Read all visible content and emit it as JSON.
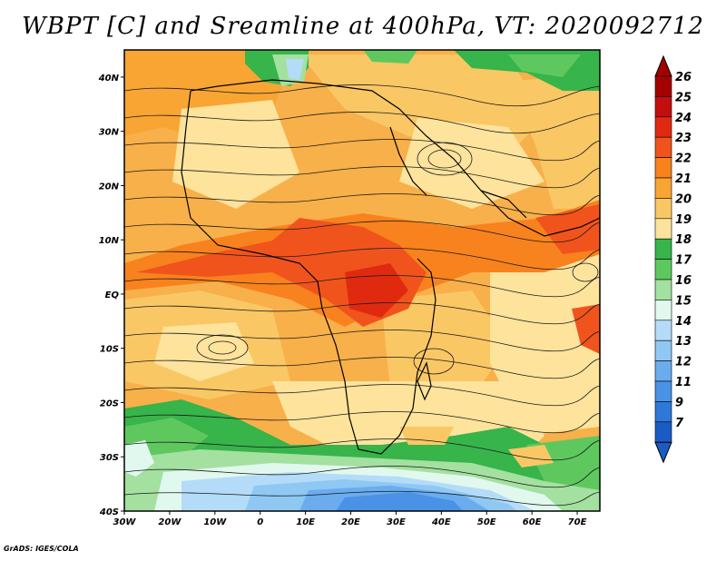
{
  "title": "WBPT [C] and Sreamline at 400hPa, VT: 2020092712",
  "credit": "GrADS: IGES/COLA",
  "map": {
    "lon_min": -30,
    "lon_max": 75,
    "lat_min": -40,
    "lat_max": 45,
    "lon_ticks": [
      {
        "value": -30,
        "label": "30W"
      },
      {
        "value": -20,
        "label": "20W"
      },
      {
        "value": -10,
        "label": "10W"
      },
      {
        "value": 0,
        "label": "0"
      },
      {
        "value": 10,
        "label": "10E"
      },
      {
        "value": 20,
        "label": "20E"
      },
      {
        "value": 30,
        "label": "30E"
      },
      {
        "value": 40,
        "label": "40E"
      },
      {
        "value": 50,
        "label": "50E"
      },
      {
        "value": 60,
        "label": "60E"
      },
      {
        "value": 70,
        "label": "70E"
      }
    ],
    "lat_ticks": [
      {
        "value": 40,
        "label": "40N"
      },
      {
        "value": 30,
        "label": "30N"
      },
      {
        "value": 20,
        "label": "20N"
      },
      {
        "value": 10,
        "label": "10N"
      },
      {
        "value": 0,
        "label": "EQ"
      },
      {
        "value": -10,
        "label": "10S"
      },
      {
        "value": -20,
        "label": "20S"
      },
      {
        "value": -30,
        "label": "30S"
      },
      {
        "value": -40,
        "label": "40S"
      }
    ]
  },
  "colorbar": {
    "levels": [
      {
        "label": "26",
        "color": "#a50000"
      },
      {
        "label": "25",
        "color": "#c40e0e"
      },
      {
        "label": "24",
        "color": "#e02a10"
      },
      {
        "label": "23",
        "color": "#f0541c"
      },
      {
        "label": "22",
        "color": "#f8821e"
      },
      {
        "label": "21",
        "color": "#f9a533"
      },
      {
        "label": "20",
        "color": "#fac765"
      },
      {
        "label": "19",
        "color": "#fde39c"
      },
      {
        "label": "18",
        "color": "#37b44a"
      },
      {
        "label": "17",
        "color": "#5ec85f"
      },
      {
        "label": "16",
        "color": "#a4e0a0"
      },
      {
        "label": "15",
        "color": "#e0f8ee"
      },
      {
        "label": "14",
        "color": "#b4dcf8"
      },
      {
        "label": "13",
        "color": "#90c8f4"
      },
      {
        "label": "12",
        "color": "#6aacee"
      },
      {
        "label": "11",
        "color": "#4a92e6"
      },
      {
        "label": "9",
        "color": "#2e78d8"
      },
      {
        "label": "7",
        "color": "#1a5cc4"
      }
    ]
  }
}
